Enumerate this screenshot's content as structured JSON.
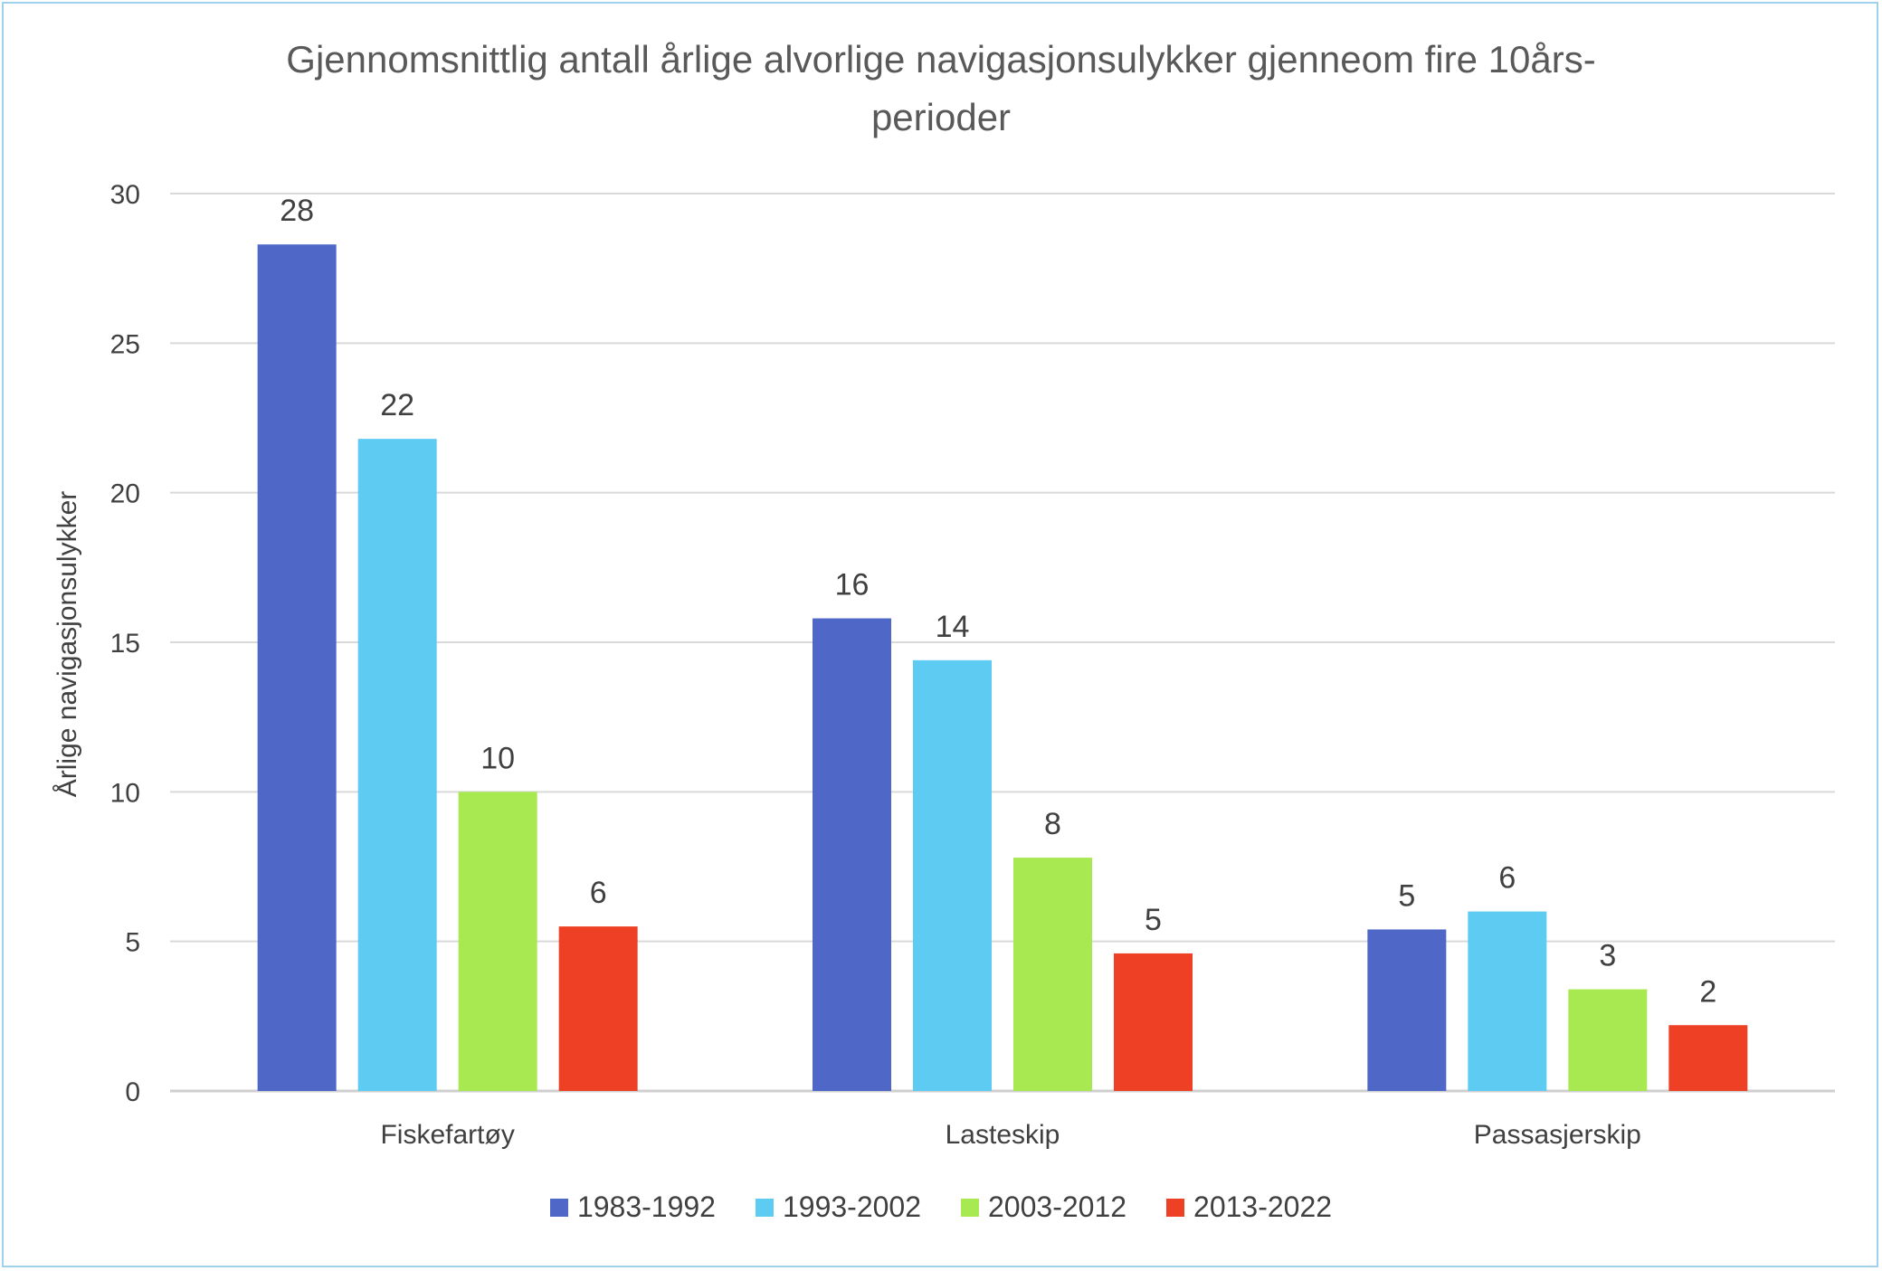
{
  "chart_data": {
    "type": "bar",
    "title": "Gjennomsnittlig antall årlige alvorlige navigasjonsulykker gjenneom fire 10års-perioder",
    "title_lines": [
      "Gjennomsnittlig antall årlige alvorlige navigasjonsulykker gjenneom fire 10års-",
      "perioder"
    ],
    "xlabel": "",
    "ylabel": "Årlige navigasjonsulykker",
    "categories": [
      "Fiskefartøy",
      "Lasteskip",
      "Passasjerskip"
    ],
    "series": [
      {
        "name": "1983-1992",
        "color": "#4f68c8",
        "values": [
          28.3,
          15.8,
          5.4
        ],
        "labels": [
          "28",
          "16",
          "5"
        ]
      },
      {
        "name": "1993-2002",
        "color": "#5ecbf2",
        "values": [
          21.8,
          14.4,
          6.0
        ],
        "labels": [
          "22",
          "14",
          "6"
        ]
      },
      {
        "name": "2003-2012",
        "color": "#a8e850",
        "values": [
          10.0,
          7.8,
          3.4
        ],
        "labels": [
          "10",
          "8",
          "3"
        ]
      },
      {
        "name": "2013-2022",
        "color": "#ee4024",
        "values": [
          5.5,
          4.6,
          2.2
        ],
        "labels": [
          "6",
          "5",
          "2"
        ]
      }
    ],
    "ylim": [
      0,
      30
    ],
    "yticks": [
      0,
      5,
      10,
      15,
      20,
      25,
      30
    ],
    "grid": true,
    "legend": "bottom"
  }
}
